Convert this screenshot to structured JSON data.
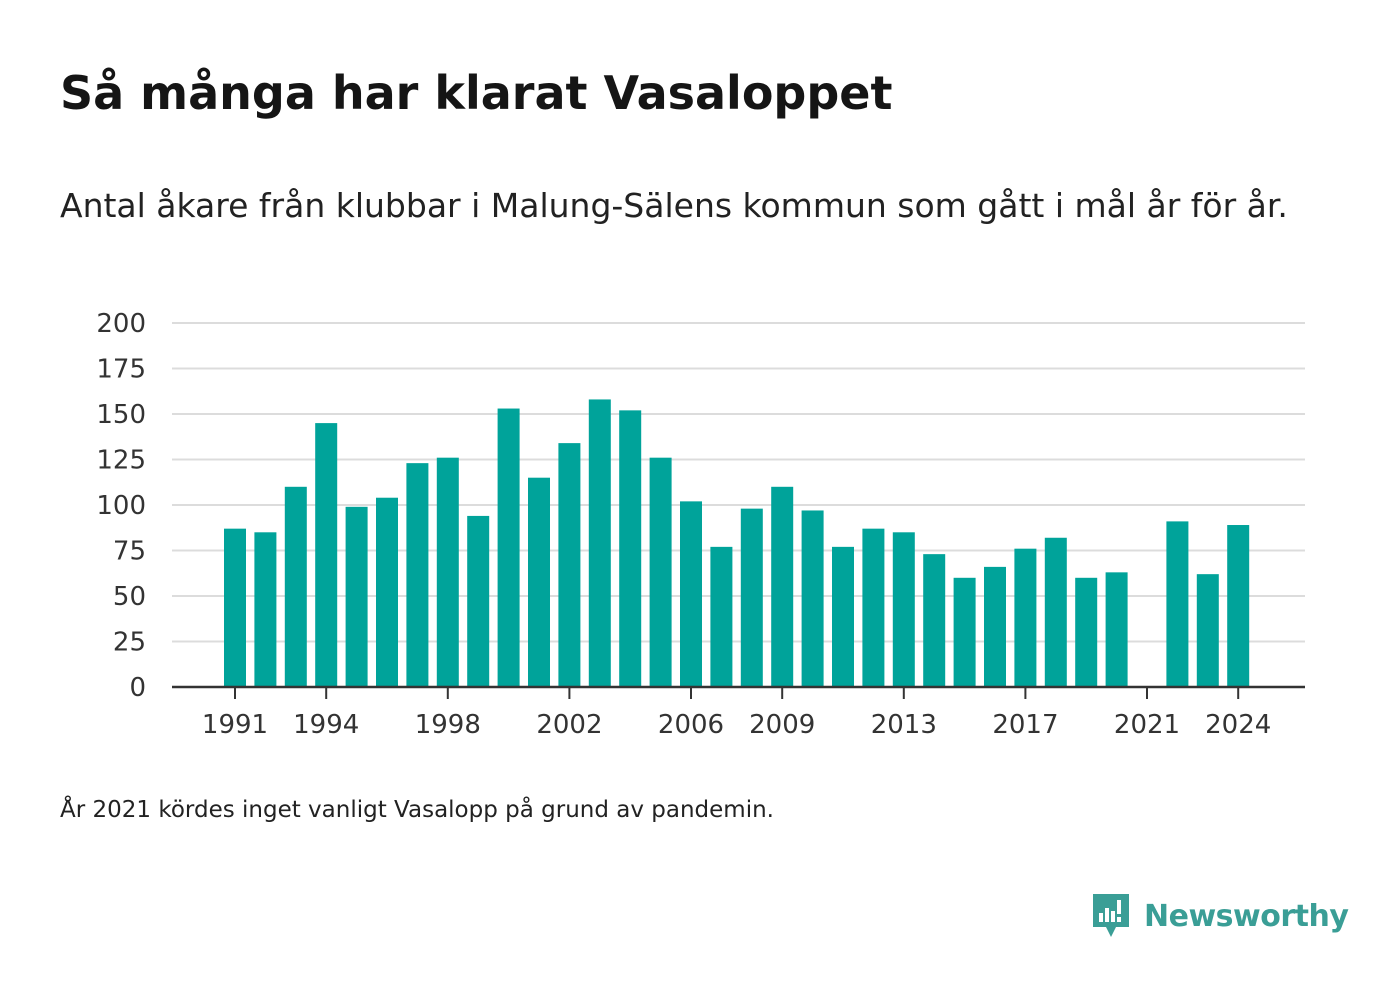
{
  "title": "Så många har klarat Vasaloppet",
  "subtitle": "Antal åkare från klubbar i Malung-Sälens kommun som gått i mål år för år.",
  "note": "År 2021 kördes inget vanligt Vasalopp på grund av pandemin.",
  "brand": {
    "name": "Newsworthy",
    "icon": "newsworthy-logo-icon",
    "color": "#3a9e96"
  },
  "colors": {
    "bar": "#00a39a",
    "grid": "#dcdcdc",
    "axis": "#333333"
  },
  "chart_data": {
    "type": "bar",
    "title": "Så många har klarat Vasaloppet",
    "xlabel": "",
    "ylabel": "",
    "ylim": [
      0,
      200
    ],
    "yticks": [
      0,
      25,
      50,
      75,
      100,
      125,
      150,
      175,
      200
    ],
    "xtick_labels": [
      "1991",
      "1994",
      "1998",
      "2002",
      "2006",
      "2009",
      "2013",
      "2017",
      "2021",
      "2024"
    ],
    "grid": true,
    "categories": [
      "1991",
      "1992",
      "1993",
      "1994",
      "1995",
      "1996",
      "1997",
      "1998",
      "1999",
      "2000",
      "2001",
      "2002",
      "2003",
      "2004",
      "2005",
      "2006",
      "2007",
      "2008",
      "2009",
      "2010",
      "2011",
      "2012",
      "2013",
      "2014",
      "2015",
      "2016",
      "2017",
      "2018",
      "2019",
      "2020",
      "2021",
      "2022",
      "2023",
      "2024"
    ],
    "values": [
      87,
      85,
      110,
      145,
      99,
      104,
      123,
      126,
      94,
      153,
      115,
      134,
      158,
      152,
      126,
      102,
      77,
      98,
      110,
      97,
      77,
      87,
      85,
      73,
      60,
      66,
      76,
      82,
      60,
      63,
      null,
      91,
      62,
      89
    ]
  }
}
